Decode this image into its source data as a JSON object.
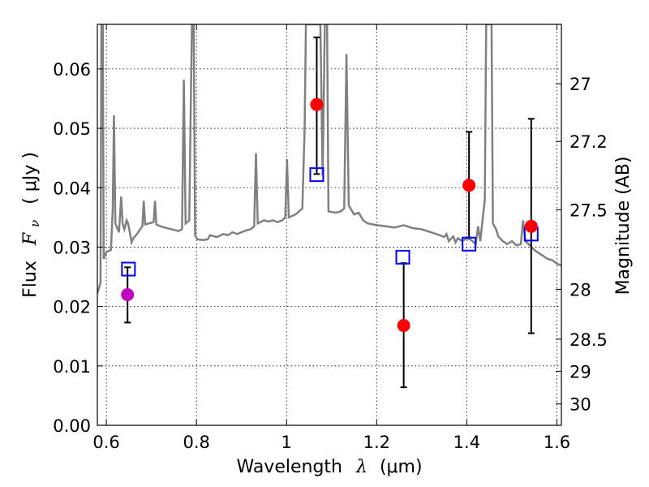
{
  "chart_data": {
    "type": "line",
    "xlabel_prefix": "Wavelength",
    "xlabel_symbol": "λ",
    "xlabel_unit": "(μm)",
    "ylabel_prefix": "Flux",
    "ylabel_symbol": "F",
    "ylabel_sub": "ν",
    "ylabel_unit": "( μJy )",
    "y2label": "Magnitude (AB)",
    "xlim": [
      0.58,
      1.61
    ],
    "ylim": [
      0.0,
      0.0675
    ],
    "grid": true,
    "xticks": [
      0.6,
      0.8,
      1.0,
      1.2,
      1.4,
      1.6
    ],
    "xtick_labels": [
      "0.6",
      "0.8",
      "1",
      "1.2",
      "1.4",
      "1.6"
    ],
    "yticks": [
      0.0,
      0.01,
      0.02,
      0.03,
      0.04,
      0.05,
      0.06
    ],
    "ytick_labels": [
      "0.00",
      "0.01",
      "0.02",
      "0.03",
      "0.04",
      "0.05",
      "0.06"
    ],
    "y2ticks": [
      {
        "label": "27",
        "flux": 0.0575
      },
      {
        "label": "27.2",
        "flux": 0.0478
      },
      {
        "label": "27.5",
        "flux": 0.0363
      },
      {
        "label": "28",
        "flux": 0.0229
      },
      {
        "label": "28.5",
        "flux": 0.0145
      },
      {
        "label": "29",
        "flux": 0.0091
      },
      {
        "label": "30",
        "flux": 0.0036
      }
    ],
    "colors": {
      "spectrum": "#808080",
      "detection": "#ff0000",
      "highlight": "#c000c0",
      "model": "#0000ff",
      "errorbar": "#000000"
    },
    "spectrum": [
      [
        0.58,
        0.0222
      ],
      [
        0.587,
        0.024
      ],
      [
        0.589,
        0.0675
      ],
      [
        0.592,
        0.0675
      ],
      [
        0.594,
        0.028
      ],
      [
        0.6,
        0.0292
      ],
      [
        0.61,
        0.0295
      ],
      [
        0.614,
        0.036
      ],
      [
        0.617,
        0.0522
      ],
      [
        0.62,
        0.034
      ],
      [
        0.628,
        0.0325
      ],
      [
        0.633,
        0.0385
      ],
      [
        0.636,
        0.034
      ],
      [
        0.64,
        0.033
      ],
      [
        0.645,
        0.0345
      ],
      [
        0.648,
        0.034
      ],
      [
        0.652,
        0.0325
      ],
      [
        0.656,
        0.0308
      ],
      [
        0.66,
        0.0315
      ],
      [
        0.668,
        0.0322
      ],
      [
        0.675,
        0.033
      ],
      [
        0.68,
        0.0335
      ],
      [
        0.683,
        0.0378
      ],
      [
        0.686,
        0.0338
      ],
      [
        0.695,
        0.034
      ],
      [
        0.705,
        0.0342
      ],
      [
        0.708,
        0.0378
      ],
      [
        0.711,
        0.0338
      ],
      [
        0.72,
        0.0335
      ],
      [
        0.73,
        0.0333
      ],
      [
        0.74,
        0.0331
      ],
      [
        0.75,
        0.0329
      ],
      [
        0.76,
        0.0327
      ],
      [
        0.768,
        0.033
      ],
      [
        0.772,
        0.0582
      ],
      [
        0.776,
        0.034
      ],
      [
        0.784,
        0.0345
      ],
      [
        0.787,
        0.0522
      ],
      [
        0.79,
        0.0675
      ],
      [
        0.794,
        0.0675
      ],
      [
        0.797,
        0.032
      ],
      [
        0.802,
        0.0313
      ],
      [
        0.815,
        0.0312
      ],
      [
        0.825,
        0.0313
      ],
      [
        0.83,
        0.032
      ],
      [
        0.845,
        0.0317
      ],
      [
        0.86,
        0.0322
      ],
      [
        0.87,
        0.032
      ],
      [
        0.88,
        0.0325
      ],
      [
        0.89,
        0.0322
      ],
      [
        0.9,
        0.0325
      ],
      [
        0.91,
        0.0328
      ],
      [
        0.92,
        0.033
      ],
      [
        0.928,
        0.0335
      ],
      [
        0.932,
        0.0458
      ],
      [
        0.936,
        0.034
      ],
      [
        0.95,
        0.0345
      ],
      [
        0.96,
        0.0343
      ],
      [
        0.97,
        0.0345
      ],
      [
        0.98,
        0.0342
      ],
      [
        0.99,
        0.0345
      ],
      [
        0.997,
        0.035
      ],
      [
        1.001,
        0.0448
      ],
      [
        1.005,
        0.035
      ],
      [
        1.02,
        0.0355
      ],
      [
        1.035,
        0.0365
      ],
      [
        1.04,
        0.05
      ],
      [
        1.043,
        0.0675
      ],
      [
        1.06,
        0.0675
      ],
      [
        1.07,
        0.0675
      ],
      [
        1.075,
        0.0675
      ],
      [
        1.08,
        0.042
      ],
      [
        1.085,
        0.0675
      ],
      [
        1.09,
        0.0675
      ],
      [
        1.093,
        0.036
      ],
      [
        1.11,
        0.0358
      ],
      [
        1.12,
        0.036
      ],
      [
        1.128,
        0.0365
      ],
      [
        1.133,
        0.0625
      ],
      [
        1.138,
        0.037
      ],
      [
        1.15,
        0.0355
      ],
      [
        1.16,
        0.0358
      ],
      [
        1.17,
        0.0345
      ],
      [
        1.18,
        0.034
      ],
      [
        1.2,
        0.0337
      ],
      [
        1.22,
        0.0335
      ],
      [
        1.24,
        0.0333
      ],
      [
        1.26,
        0.0337
      ],
      [
        1.28,
        0.0332
      ],
      [
        1.3,
        0.033
      ],
      [
        1.32,
        0.0325
      ],
      [
        1.34,
        0.032
      ],
      [
        1.35,
        0.0317
      ],
      [
        1.355,
        0.0322
      ],
      [
        1.36,
        0.031
      ],
      [
        1.37,
        0.0318
      ],
      [
        1.375,
        0.0308
      ],
      [
        1.38,
        0.0315
      ],
      [
        1.39,
        0.031
      ],
      [
        1.4,
        0.0315
      ],
      [
        1.41,
        0.0312
      ],
      [
        1.42,
        0.0305
      ],
      [
        1.425,
        0.0335
      ],
      [
        1.43,
        0.031
      ],
      [
        1.435,
        0.0345
      ],
      [
        1.44,
        0.038
      ],
      [
        1.443,
        0.0675
      ],
      [
        1.455,
        0.0675
      ],
      [
        1.458,
        0.034
      ],
      [
        1.465,
        0.033
      ],
      [
        1.47,
        0.0318
      ],
      [
        1.48,
        0.031
      ],
      [
        1.49,
        0.0305
      ],
      [
        1.5,
        0.031
      ],
      [
        1.51,
        0.0303
      ],
      [
        1.52,
        0.0305
      ],
      [
        1.525,
        0.0345
      ],
      [
        1.53,
        0.031
      ],
      [
        1.54,
        0.0303
      ],
      [
        1.55,
        0.0295
      ],
      [
        1.56,
        0.029
      ],
      [
        1.57,
        0.0285
      ],
      [
        1.58,
        0.028
      ],
      [
        1.59,
        0.0278
      ],
      [
        1.6,
        0.0272
      ],
      [
        1.61,
        0.0269
      ]
    ],
    "detections": [
      {
        "x": 1.067,
        "y": 0.054,
        "yerr_low": 0.0423,
        "yerr_high": 0.0653
      },
      {
        "x": 1.26,
        "y": 0.0168,
        "yerr_low": 0.0064,
        "yerr_high": 0.0273
      },
      {
        "x": 1.405,
        "y": 0.0404,
        "yerr_low": 0.0316,
        "yerr_high": 0.0494
      },
      {
        "x": 1.543,
        "y": 0.0335,
        "yerr_low": 0.0155,
        "yerr_high": 0.0516
      }
    ],
    "highlight": [
      {
        "x": 0.647,
        "y": 0.022,
        "yerr_low": 0.0173,
        "yerr_high": 0.0266
      }
    ],
    "model_points": [
      {
        "x": 0.649,
        "y": 0.0263
      },
      {
        "x": 1.067,
        "y": 0.0422
      },
      {
        "x": 1.258,
        "y": 0.0283
      },
      {
        "x": 1.405,
        "y": 0.0305
      },
      {
        "x": 1.543,
        "y": 0.0322
      }
    ]
  }
}
